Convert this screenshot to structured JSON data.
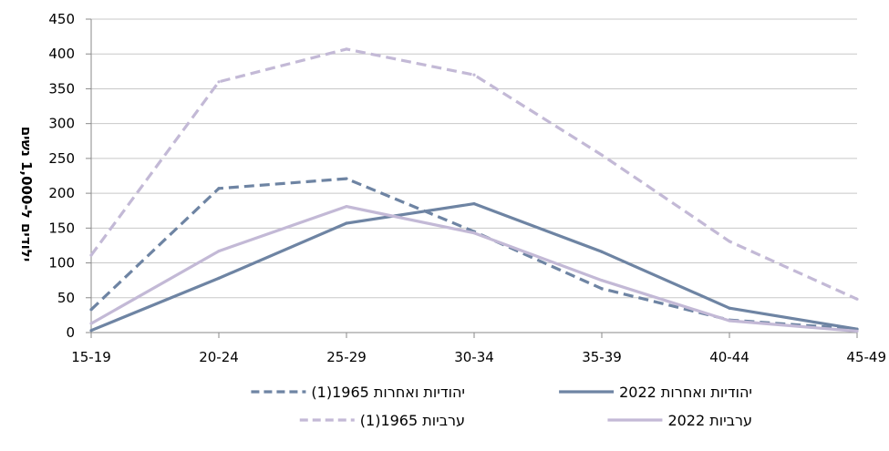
{
  "chart_data": {
    "type": "line",
    "categories": [
      "15-19",
      "20-24",
      "25-29",
      "30-34",
      "35-39",
      "40-44",
      "45-49"
    ],
    "ylabel": "ילודים ל-1,000 נשים",
    "ylim": [
      0,
      450
    ],
    "yticks": [
      0,
      50,
      100,
      150,
      200,
      250,
      300,
      350,
      400,
      450
    ],
    "grid": true,
    "legend_position": "bottom",
    "series": [
      {
        "name": "יהודיות ואחרות 1965(1)",
        "color": "#6e84a3",
        "dash": true,
        "values": [
          33,
          207,
          221,
          145,
          63,
          18,
          5
        ]
      },
      {
        "name": "יהודיות ואחרות 2022",
        "color": "#6e84a3",
        "dash": false,
        "values": [
          3,
          78,
          157,
          185,
          116,
          35,
          5
        ]
      },
      {
        "name": "ערביות 1965(1)",
        "color": "#c3b9d6",
        "dash": true,
        "values": [
          111,
          360,
          407,
          370,
          255,
          131,
          48
        ]
      },
      {
        "name": "ערביות 2022",
        "color": "#c3b9d6",
        "dash": false,
        "values": [
          13,
          117,
          181,
          143,
          75,
          17,
          2
        ]
      }
    ]
  }
}
